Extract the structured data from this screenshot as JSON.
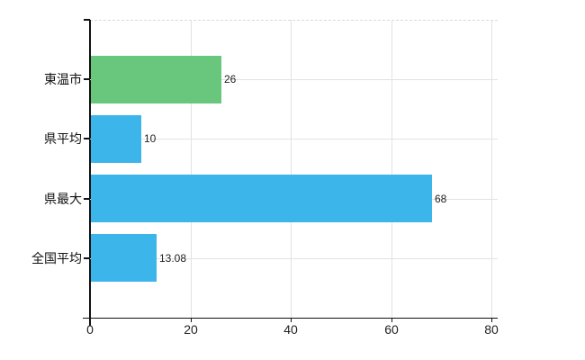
{
  "chart_data": {
    "type": "bar",
    "orientation": "horizontal",
    "title": "",
    "categories": [
      "東温市",
      "県平均",
      "県最大",
      "全国平均"
    ],
    "values": [
      26,
      10,
      68,
      13.08
    ],
    "value_labels": [
      "26",
      "10",
      "68",
      "13.08"
    ],
    "bar_colors": [
      "#68c77c",
      "#3cb5ea",
      "#3cb5ea",
      "#3cb5ea"
    ],
    "x_ticks": [
      0,
      20,
      40,
      60,
      80
    ],
    "x_tick_labels": [
      "0",
      "20",
      "40",
      "60",
      "80"
    ],
    "xlim": [
      0,
      80
    ],
    "grid": true,
    "legend": false
  },
  "colors": {
    "bar_highlight": "#68c77c",
    "bar_default": "#3cb5ea",
    "axis": "#111111",
    "gridline": "#e2e2e2",
    "text": "#222222"
  }
}
